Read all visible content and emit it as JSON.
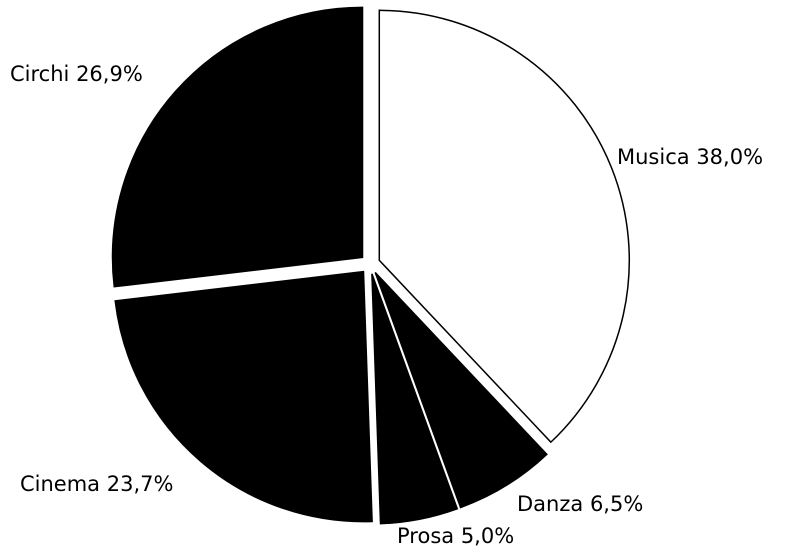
{
  "chart_data": {
    "type": "pie",
    "categories": [
      "Musica",
      "Danza",
      "Prosa",
      "Cinema",
      "Circhi"
    ],
    "values": [
      38.0,
      6.5,
      5.0,
      23.7,
      26.9
    ],
    "value_labels": [
      "38,0%",
      "6,5%",
      "5,0%",
      "23,7%",
      "26,9%"
    ],
    "colors": [
      "#ffffff",
      "#000000",
      "#000000",
      "#000000",
      "#000000"
    ]
  }
}
